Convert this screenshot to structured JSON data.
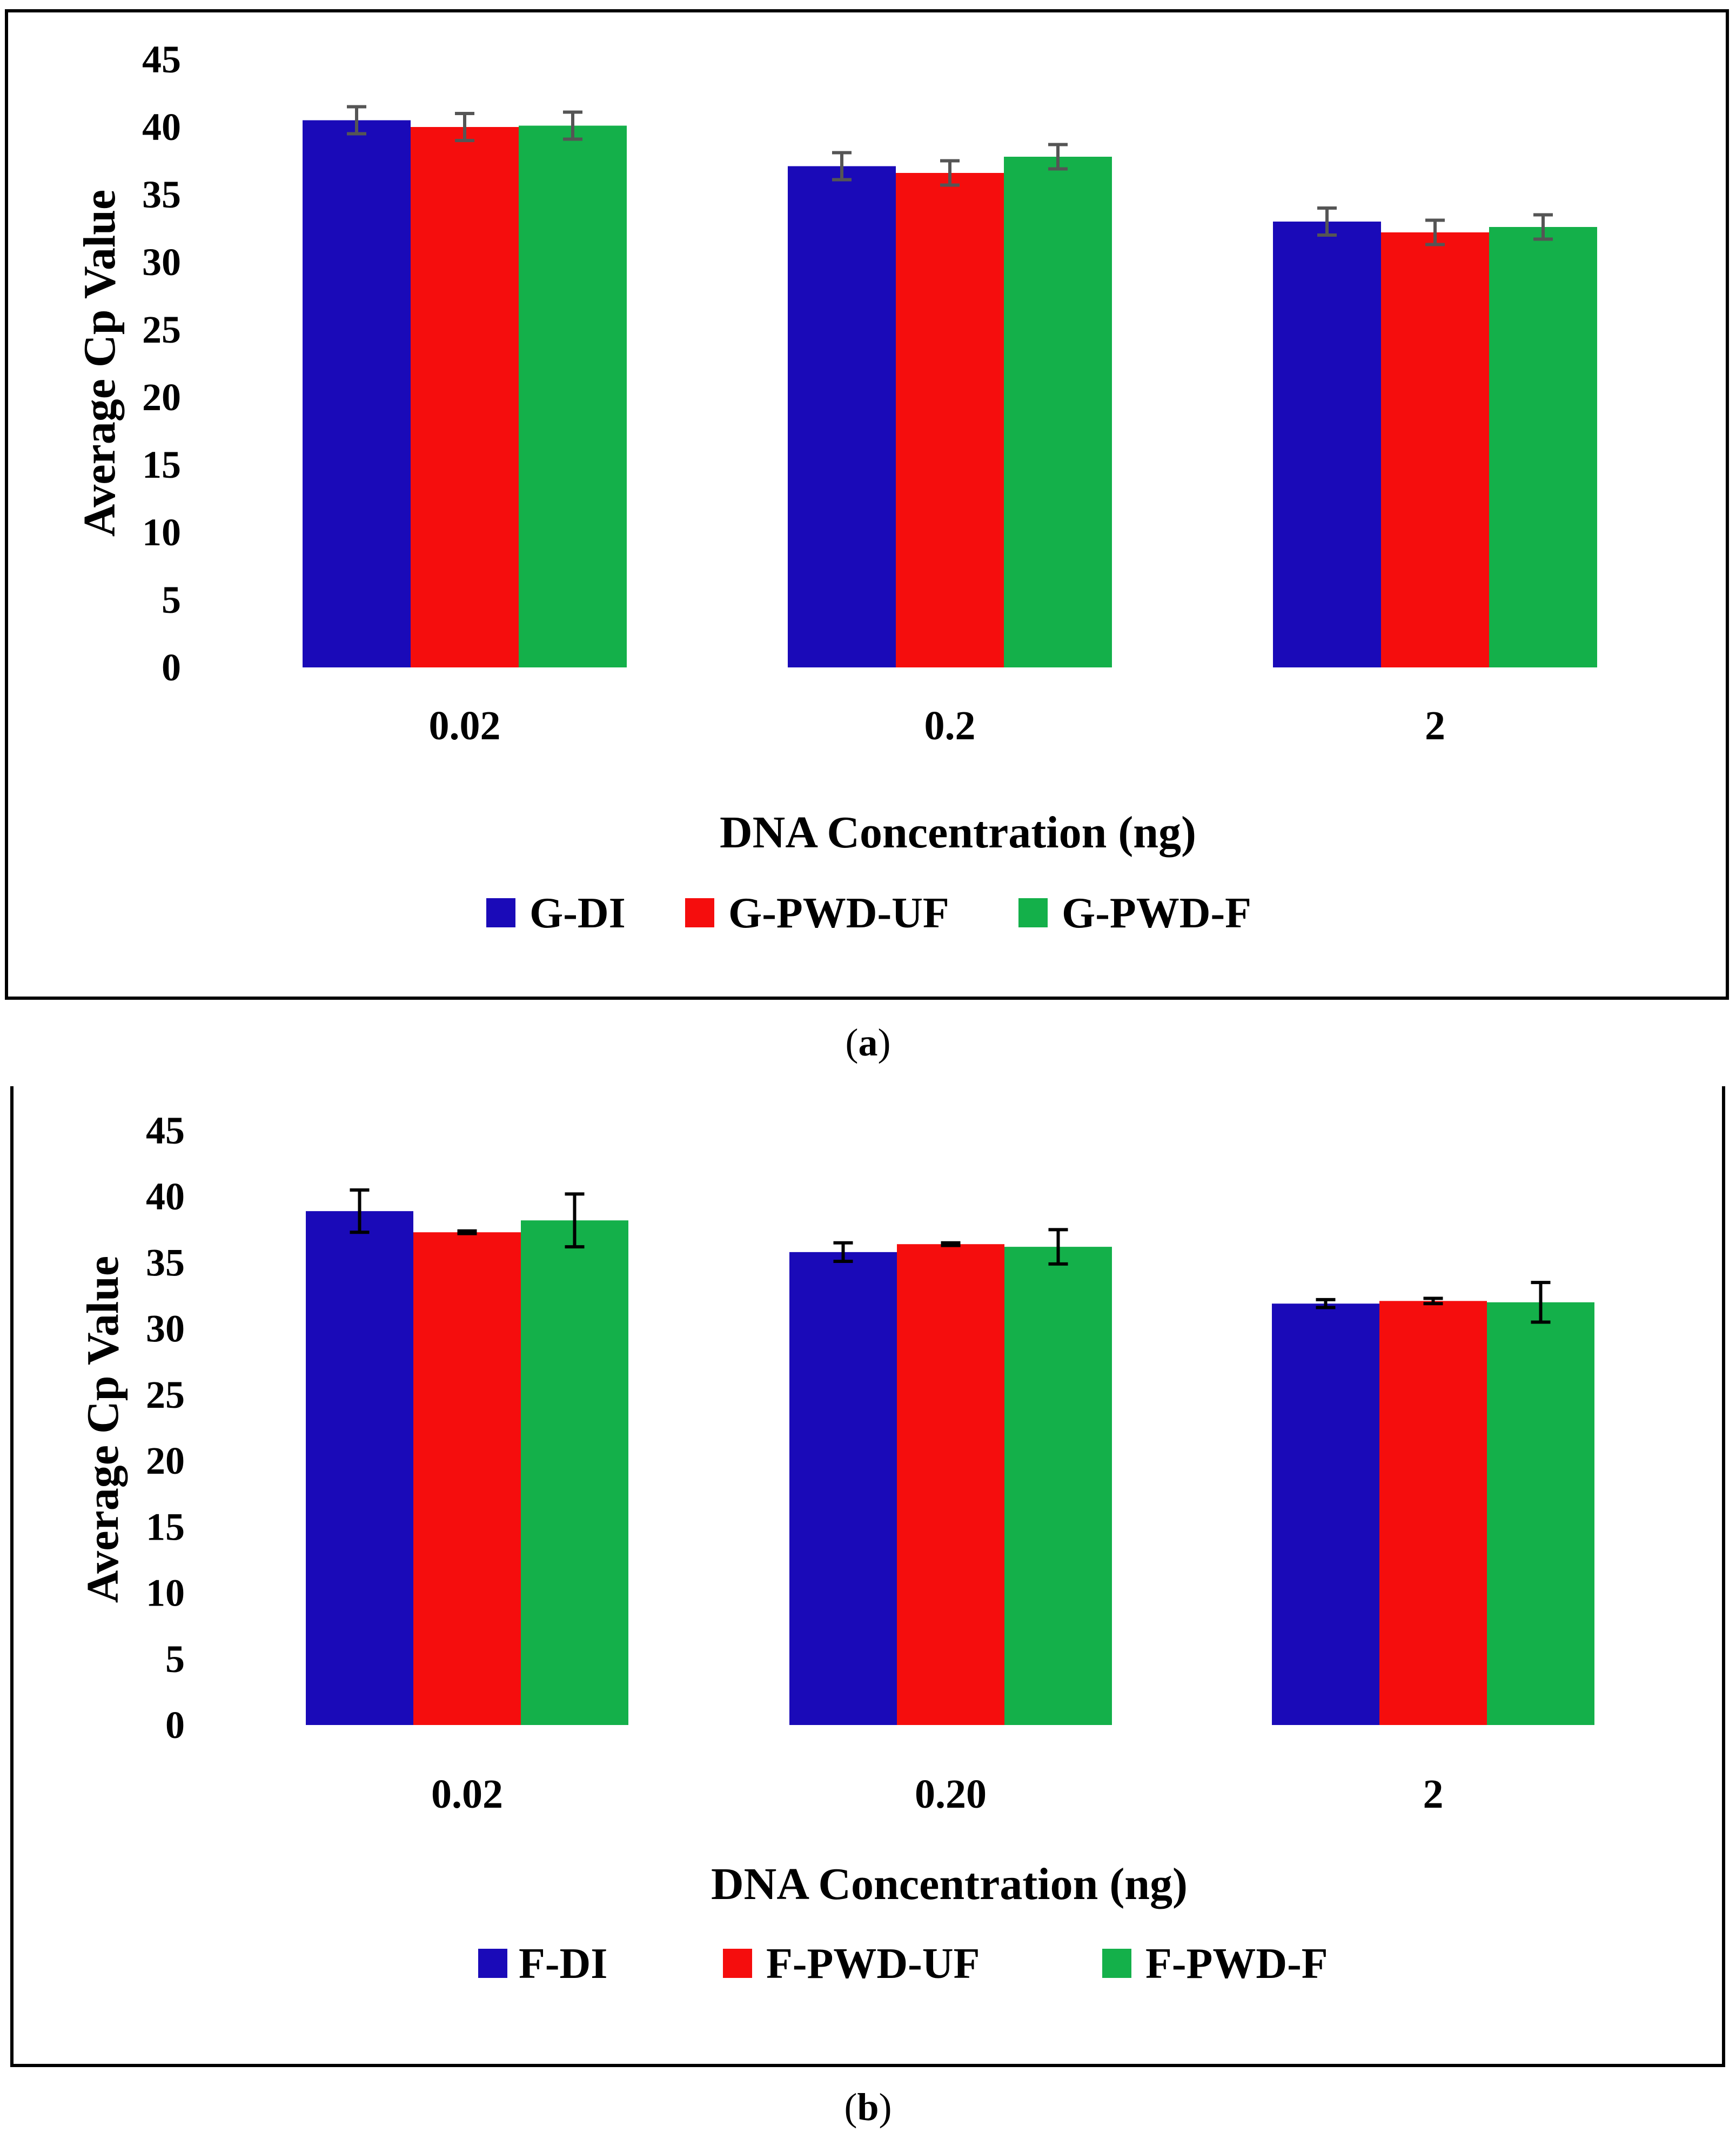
{
  "captions": {
    "a": "a",
    "b": "b"
  },
  "chart_data": [
    {
      "type": "bar",
      "panel": "a",
      "title": "",
      "xlabel": "DNA Concentration (ng)",
      "ylabel": "Average Cp Value",
      "ylim": [
        0,
        45
      ],
      "yticks": [
        0,
        5,
        10,
        15,
        20,
        25,
        30,
        35,
        40,
        45
      ],
      "categories": [
        "0.02",
        "0.2",
        "2"
      ],
      "legend_position": "bottom-center",
      "error_bar_color": "#555555",
      "series": [
        {
          "name": "G-DI",
          "color": "#1a0ab8",
          "values": [
            40.5,
            37.1,
            33.0
          ],
          "errors": [
            1.0,
            1.0,
            1.0
          ]
        },
        {
          "name": "G-PWD-UF",
          "color": "#f50d0d",
          "values": [
            40.0,
            36.6,
            32.2
          ],
          "errors": [
            1.0,
            0.9,
            0.9
          ]
        },
        {
          "name": "G-PWD-F",
          "color": "#14b04a",
          "values": [
            40.1,
            37.8,
            32.6
          ],
          "errors": [
            1.0,
            0.9,
            0.9
          ]
        }
      ]
    },
    {
      "type": "bar",
      "panel": "b",
      "title": "",
      "xlabel": "DNA Concentration (ng)",
      "ylabel": "Average Cp Value",
      "ylim": [
        0,
        45
      ],
      "yticks": [
        0,
        5,
        10,
        15,
        20,
        25,
        30,
        35,
        40,
        45
      ],
      "categories": [
        "0.02",
        "0.20",
        "2"
      ],
      "legend_position": "bottom-center",
      "error_bar_color": "#000000",
      "series": [
        {
          "name": "F-DI",
          "color": "#1a0ab8",
          "values": [
            38.9,
            35.8,
            31.9
          ],
          "errors": [
            1.6,
            0.7,
            0.3
          ]
        },
        {
          "name": "F-PWD-UF",
          "color": "#f50d0d",
          "values": [
            37.3,
            36.4,
            32.1
          ],
          "errors": [
            0.1,
            0.1,
            0.2
          ]
        },
        {
          "name": "F-PWD-F",
          "color": "#14b04a",
          "values": [
            38.2,
            36.2,
            32.0
          ],
          "errors": [
            2.0,
            1.3,
            1.5
          ]
        }
      ]
    }
  ]
}
